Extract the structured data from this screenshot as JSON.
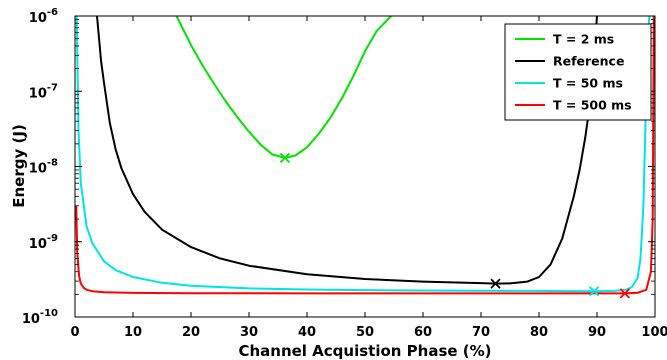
{
  "chart_data": {
    "type": "line",
    "xlabel": "Channel Acquistion Phase (%)",
    "ylabel": "Energy (J)",
    "xlim": [
      0,
      100
    ],
    "ylim": [
      1e-10,
      1e-06
    ],
    "yscale": "log",
    "x_ticks": [
      0,
      10,
      20,
      30,
      40,
      50,
      60,
      70,
      80,
      90,
      100
    ],
    "y_ticks": [
      {
        "value": 1e-10,
        "base": "10",
        "exp": "-10"
      },
      {
        "value": 1e-09,
        "base": "10",
        "exp": "-9"
      },
      {
        "value": 1e-08,
        "base": "10",
        "exp": "-8"
      },
      {
        "value": 1e-07,
        "base": "10",
        "exp": "-7"
      },
      {
        "value": 1e-06,
        "base": "10",
        "exp": "-6"
      }
    ],
    "grid": false,
    "legend_position": "top-right",
    "series": [
      {
        "name": "T = 2 ms",
        "color": "#00e400",
        "x": [
          17.5,
          20,
          22,
          24,
          26,
          28,
          30,
          32,
          34,
          36.2,
          38,
          40,
          42,
          44,
          46,
          48,
          50,
          52,
          54.5
        ],
        "y": [
          1e-06,
          4.1e-07,
          2.2e-07,
          1.25e-07,
          7.3e-08,
          4.5e-08,
          2.9e-08,
          1.95e-08,
          1.45e-08,
          1.3e-08,
          1.4e-08,
          1.8e-08,
          2.7e-08,
          4.4e-08,
          8e-08,
          1.6e-07,
          3.4e-07,
          6.3e-07,
          1e-06
        ],
        "min": {
          "x": 36.2,
          "y": 1.3e-08
        }
      },
      {
        "name": "Reference",
        "color": "#000000",
        "x": [
          3.8,
          4.5,
          5,
          6,
          7,
          8,
          10,
          12,
          15,
          20,
          25,
          30,
          40,
          50,
          60,
          70,
          72.5,
          75,
          78,
          80,
          82,
          84,
          86,
          87,
          88,
          89,
          90
        ],
        "y": [
          1e-06,
          2.5e-07,
          1.3e-07,
          3.8e-08,
          1.7e-08,
          9.5e-09,
          4.3e-09,
          2.5e-09,
          1.45e-09,
          8.5e-10,
          6e-10,
          4.8e-10,
          3.7e-10,
          3.2e-10,
          2.95e-10,
          2.82e-10,
          2.78e-10,
          2.8e-10,
          2.95e-10,
          3.4e-10,
          5e-10,
          1.1e-09,
          4e-09,
          9e-09,
          2.5e-08,
          9e-08,
          1e-06
        ],
        "min": {
          "x": 72.5,
          "y": 2.78e-10
        }
      },
      {
        "name": "T = 50 ms",
        "color": "#00e4e4",
        "x": [
          0.3,
          0.6,
          1,
          2,
          3,
          5,
          7,
          10,
          15,
          20,
          30,
          40,
          50,
          60,
          70,
          80,
          85,
          89.5,
          93,
          95,
          96,
          97,
          97.5,
          98,
          98.5,
          99
        ],
        "y": [
          1e-06,
          3e-08,
          6e-09,
          1.6e-09,
          9.5e-10,
          5.5e-10,
          4.2e-10,
          3.4e-10,
          2.85e-10,
          2.6e-10,
          2.4e-10,
          2.32e-10,
          2.28e-10,
          2.25e-10,
          2.23e-10,
          2.22e-10,
          2.21e-10,
          2.2e-10,
          2.22e-10,
          2.3e-10,
          2.5e-10,
          3.3e-10,
          6e-10,
          3e-09,
          1e-07,
          1e-06
        ],
        "min": {
          "x": 89.5,
          "y": 2.2e-10
        }
      },
      {
        "name": "T = 500 ms",
        "color": "#ff0000",
        "x": [
          0.2,
          0.4,
          0.7,
          1,
          1.5,
          2,
          3,
          5,
          10,
          20,
          40,
          60,
          80,
          90,
          94.8,
          97,
          98.5,
          99.3,
          99.6,
          99.8
        ],
        "y": [
          3e-09,
          7e-10,
          3.5e-10,
          2.8e-10,
          2.45e-10,
          2.3e-10,
          2.2e-10,
          2.13e-10,
          2.09e-10,
          2.07e-10,
          2.06e-10,
          2.06e-10,
          2.06e-10,
          2.06e-10,
          2.06e-10,
          2.1e-10,
          2.3e-10,
          4e-10,
          2e-09,
          1e-06
        ],
        "min": {
          "x": 94.8,
          "y": 2.06e-10
        }
      }
    ]
  }
}
